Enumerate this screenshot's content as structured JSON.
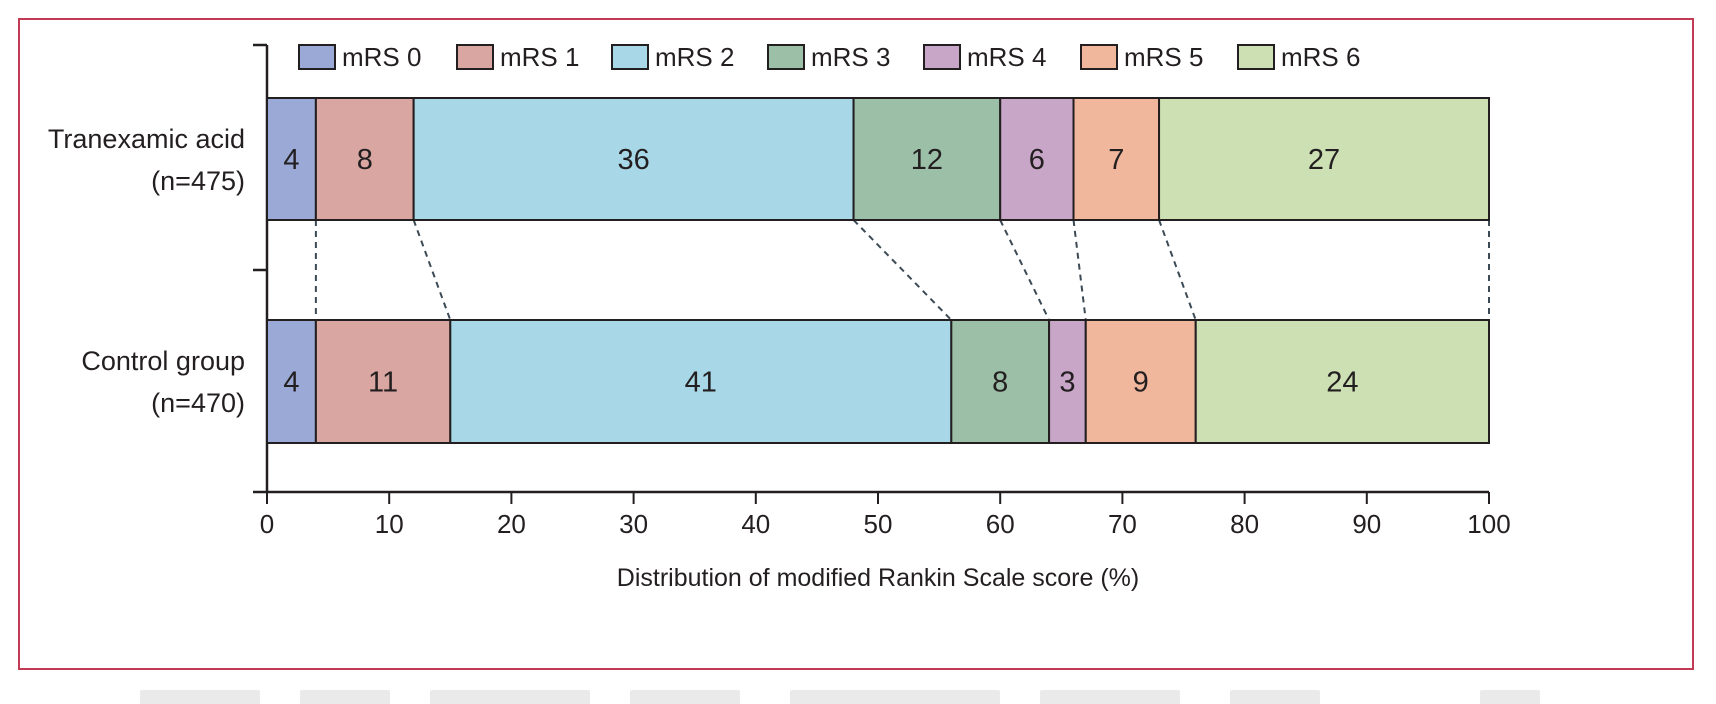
{
  "chart_data": {
    "type": "bar",
    "orientation": "horizontal",
    "stacked": true,
    "categories": [
      {
        "line1": "Tranexamic acid",
        "line2": "(n=475)"
      },
      {
        "line1": "Control group",
        "line2": "(n=470)"
      }
    ],
    "series": [
      {
        "name": "mRS 0",
        "color": "#9aa9d6",
        "values": [
          4,
          4
        ]
      },
      {
        "name": "mRS 1",
        "color": "#d9a6a2",
        "values": [
          8,
          11
        ]
      },
      {
        "name": "mRS 2",
        "color": "#a8d7e7",
        "values": [
          36,
          41
        ]
      },
      {
        "name": "mRS 3",
        "color": "#9cbfa8",
        "values": [
          12,
          8
        ]
      },
      {
        "name": "mRS 4",
        "color": "#c8a6c8",
        "values": [
          6,
          3
        ]
      },
      {
        "name": "mRS 5",
        "color": "#f1b79c",
        "values": [
          7,
          9
        ]
      },
      {
        "name": "mRS 6",
        "color": "#cde0b4",
        "values": [
          27,
          24
        ]
      }
    ],
    "xlabel": "Distribution of modified Rankin Scale score (%)",
    "xlim": [
      0,
      100
    ],
    "xticks": [
      0,
      10,
      20,
      30,
      40,
      50,
      60,
      70,
      80,
      90,
      100
    ],
    "legend_position": "top",
    "connectors": "dashed",
    "grid": false
  }
}
